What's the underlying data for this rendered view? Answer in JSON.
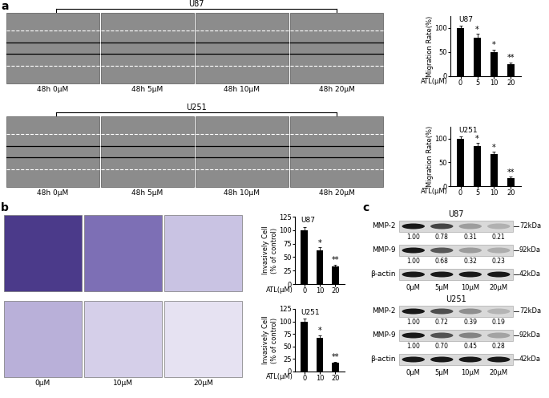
{
  "panel_a": {
    "label": "a",
    "image_rows": [
      {
        "cell_line": "U87",
        "captions": [
          "48h 0μM",
          "48h 5μM",
          "48h 10μM",
          "48h 20μM"
        ]
      },
      {
        "cell_line": "U251",
        "captions": [
          "48h 0μM",
          "48h 5μM",
          "48h 10μM",
          "48h 20μM"
        ]
      }
    ]
  },
  "panel_b": {
    "label": "b",
    "captions": [
      "0μM",
      "10μM",
      "20μM"
    ],
    "image_rows": [
      "U87",
      "U251"
    ]
  },
  "panel_c": {
    "label": "c",
    "blots": [
      {
        "cell_line": "U87",
        "lanes": [
          "0μM",
          "5μM",
          "10μM",
          "20μM"
        ],
        "rows": [
          {
            "name": "MMP-2",
            "size": "72kDa",
            "values": [
              "1.00",
              "0.78",
              "0.31",
              "0.21"
            ]
          },
          {
            "name": "MMP-9",
            "size": "92kDa",
            "values": [
              "1.00",
              "0.68",
              "0.32",
              "0.23"
            ]
          },
          {
            "name": "β-actin",
            "size": "42kDa"
          }
        ]
      },
      {
        "cell_line": "U251",
        "lanes": [
          "0μM",
          "5μM",
          "10μM",
          "20μM"
        ],
        "rows": [
          {
            "name": "MMP-2",
            "size": "72kDa",
            "values": [
              "1.00",
              "0.72",
              "0.39",
              "0.19"
            ]
          },
          {
            "name": "MMP-9",
            "size": "92kDa",
            "values": [
              "1.00",
              "0.70",
              "0.45",
              "0.28"
            ]
          },
          {
            "name": "β-actin",
            "size": "42kDa"
          }
        ]
      }
    ]
  },
  "chart_data": [
    {
      "type": "bar",
      "panel": "a",
      "title": "U87",
      "ylabel": "Migration Rate(%)",
      "xlabel": "ATL(μM)",
      "categories": [
        "0",
        "5",
        "10",
        "20"
      ],
      "values": [
        100,
        80,
        50,
        25
      ],
      "errors": [
        5,
        8,
        5,
        4
      ],
      "significance": [
        null,
        "*",
        "*",
        "**"
      ],
      "color": "#000000",
      "ylim": [
        0,
        125
      ],
      "yticks": [
        0,
        50,
        100
      ]
    },
    {
      "type": "bar",
      "panel": "a",
      "title": "U251",
      "ylabel": "Migration Rate(%)",
      "xlabel": "ATL(μM)",
      "categories": [
        "0",
        "5",
        "10",
        "20"
      ],
      "values": [
        100,
        85,
        67,
        17
      ],
      "errors": [
        5,
        6,
        5,
        3
      ],
      "significance": [
        null,
        "*",
        "*",
        "**"
      ],
      "color": "#000000",
      "ylim": [
        0,
        125
      ],
      "yticks": [
        0,
        50,
        100
      ]
    },
    {
      "type": "bar",
      "panel": "b",
      "title": "U87",
      "ylabel": "Invasively Cell\n(% of control)",
      "xlabel": "ATL(μM)",
      "categories": [
        "0",
        "10",
        "20"
      ],
      "values": [
        100,
        62,
        32
      ],
      "errors": [
        6,
        6,
        4
      ],
      "significance": [
        null,
        "*",
        "**"
      ],
      "color": "#000000",
      "ylim": [
        0,
        125
      ],
      "yticks": [
        0,
        25,
        50,
        75,
        100,
        125
      ]
    },
    {
      "type": "bar",
      "panel": "b",
      "title": "U251",
      "ylabel": "Invasively Cell\n(% of control)",
      "xlabel": "ATL(μM)",
      "categories": [
        "0",
        "10",
        "20"
      ],
      "values": [
        100,
        67,
        17
      ],
      "errors": [
        6,
        5,
        3
      ],
      "significance": [
        null,
        "*",
        "**"
      ],
      "color": "#000000",
      "ylim": [
        0,
        125
      ],
      "yticks": [
        0,
        25,
        50,
        75,
        100,
        125
      ]
    }
  ]
}
